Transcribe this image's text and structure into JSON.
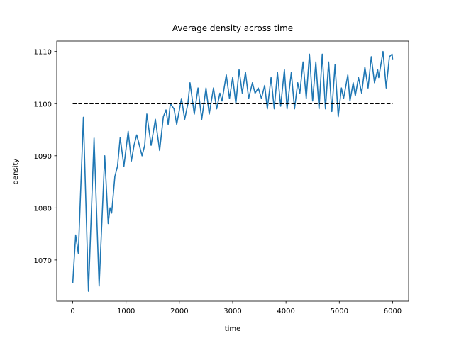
{
  "chart_data": {
    "type": "line",
    "title": "Average density across time",
    "xlabel": "time",
    "ylabel": "density",
    "xlim": [
      -300,
      6300
    ],
    "ylim": [
      1062.1,
      1112.0
    ],
    "xticks": [
      0,
      1000,
      2000,
      3000,
      4000,
      5000,
      6000
    ],
    "yticks": [
      1070,
      1080,
      1090,
      1100,
      1110
    ],
    "series": [
      {
        "color": "#1f77b4",
        "dash": false,
        "x": [
          0,
          55,
          105,
          200,
          295,
          400,
          495,
          600,
          665,
          700,
          730,
          790,
          840,
          890,
          960,
          1040,
          1100,
          1150,
          1200,
          1300,
          1350,
          1390,
          1470,
          1550,
          1630,
          1700,
          1750,
          1790,
          1830,
          1900,
          1950,
          2040,
          2100,
          2160,
          2200,
          2280,
          2350,
          2420,
          2500,
          2560,
          2640,
          2700,
          2760,
          2800,
          2880,
          2940,
          3000,
          3060,
          3120,
          3180,
          3240,
          3300,
          3370,
          3420,
          3480,
          3540,
          3600,
          3650,
          3720,
          3780,
          3840,
          3900,
          3970,
          4020,
          4100,
          4160,
          4220,
          4260,
          4320,
          4380,
          4440,
          4500,
          4560,
          4620,
          4680,
          4740,
          4800,
          4860,
          4920,
          4980,
          5040,
          5080,
          5160,
          5200,
          5260,
          5300,
          5360,
          5420,
          5480,
          5540,
          5600,
          5660,
          5720,
          5740,
          5820,
          5880,
          5940,
          5990,
          6000
        ],
        "values": [
          1065.5,
          1074.8,
          1071.3,
          1097.4,
          1064,
          1093.4,
          1065,
          1090,
          1077,
          1080,
          1079,
          1086,
          1088,
          1093.5,
          1088,
          1094.7,
          1089,
          1092,
          1094,
          1090,
          1092,
          1098,
          1092,
          1097,
          1091,
          1097.5,
          1098.8,
          1096,
          1100,
          1099,
          1096,
          1101,
          1097,
          1100,
          1104,
          1098,
          1103,
          1097,
          1103,
          1098,
          1103,
          1099,
          1102,
          1100.5,
          1105.5,
          1101,
          1105,
          1100,
          1106.5,
          1102,
          1106,
          1101,
          1104,
          1102,
          1103,
          1101,
          1103.5,
          1099,
          1105,
          1099,
          1106,
          1099.5,
          1106.5,
          1099,
          1106,
          1099,
          1104,
          1102,
          1108,
          1101,
          1109.5,
          1100.5,
          1108,
          1099,
          1109.5,
          1099,
          1108,
          1098.5,
          1107.5,
          1097.5,
          1103,
          1101,
          1105.5,
          1100.5,
          1104,
          1101.5,
          1105,
          1102,
          1107,
          1103,
          1109,
          1104,
          1106.5,
          1105,
          1110,
          1103,
          1109,
          1109.5,
          1108.5
        ]
      },
      {
        "color": "#000000",
        "dash": true,
        "x": [
          0,
          6000
        ],
        "values": [
          1100,
          1100
        ]
      }
    ]
  }
}
